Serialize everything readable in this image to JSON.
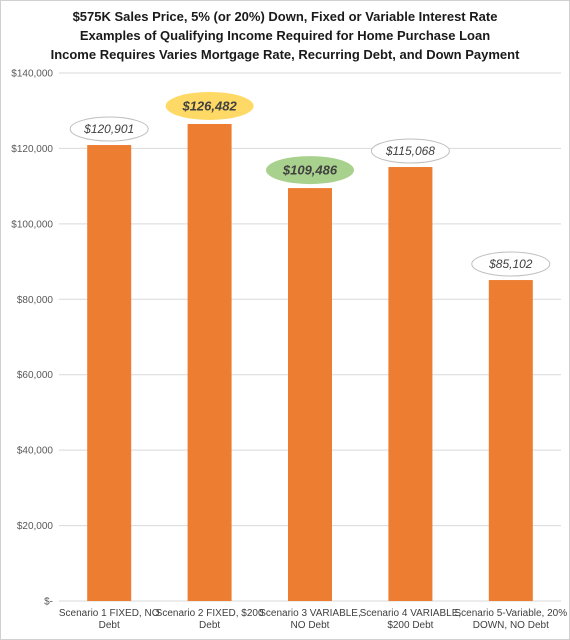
{
  "chart_data": {
    "type": "bar",
    "title_lines": [
      "$575K Sales Price, 5% (or 20%) Down, Fixed or Variable Interest Rate",
      "Examples of Qualifying Income Required for Home Purchase Loan",
      "Income Requires Varies Mortgage Rate, Recurring Debt, and Down Payment"
    ],
    "categories": [
      [
        "Scenario 1 FIXED, NO",
        "Debt"
      ],
      [
        "Scenario 2 FIXED, $200",
        "Debt"
      ],
      [
        "Scenario 3 VARIABLE,",
        "NO Debt"
      ],
      [
        "Scenario 4 VARIABLE,",
        "$200 Debt"
      ],
      [
        "Scenario 5-Variable, 20%",
        "DOWN, NO Debt"
      ]
    ],
    "values": [
      120901,
      126482,
      109486,
      115068,
      85102
    ],
    "data_labels": [
      "$120,901",
      "$126,482",
      "$109,486",
      "$115,068",
      "$85,102"
    ],
    "label_highlight": [
      "none",
      "gold",
      "green",
      "none",
      "none"
    ],
    "ylim": [
      0,
      140000
    ],
    "yticks": [
      0,
      20000,
      40000,
      60000,
      80000,
      100000,
      120000,
      140000
    ],
    "ytick_labels": [
      "$-",
      "$20,000",
      "$40,000",
      "$60,000",
      "$80,000",
      "$100,000",
      "$120,000",
      "$140,000"
    ],
    "grid": true,
    "xlabel": "",
    "ylabel": ""
  },
  "colors": {
    "bar": "#ED7D31",
    "grid": "#d9d9d9",
    "label_border": "#bfbfbf",
    "highlight_gold": "#FFD966",
    "highlight_green": "#A9D18E"
  }
}
